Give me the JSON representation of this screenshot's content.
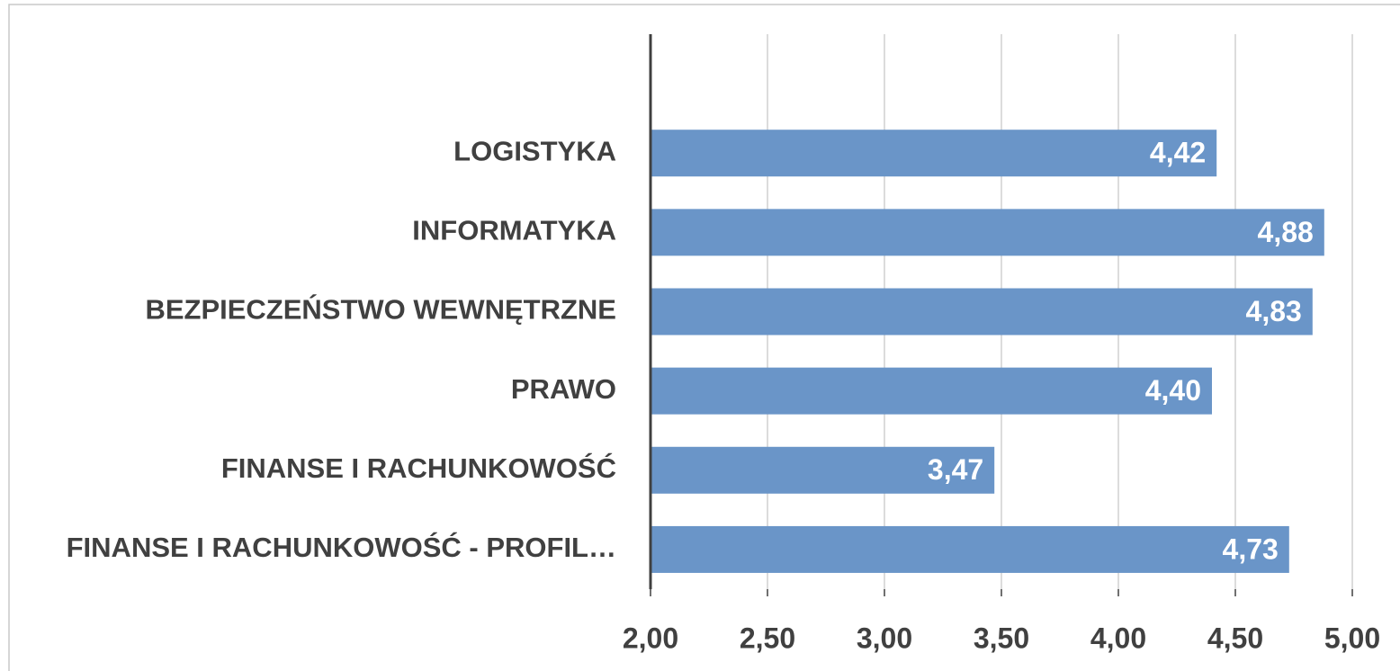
{
  "chart_data": {
    "type": "bar",
    "orientation": "horizontal",
    "categories": [
      "LOGISTYKA",
      "INFORMATYKA",
      "BEZPIECZEŃSTWO WEWNĘTRZNE",
      "PRAWO",
      "FINANSE I RACHUNKOWOŚĆ",
      "FINANSE I RACHUNKOWOŚĆ - PROFIL…"
    ],
    "values": [
      4.42,
      4.88,
      4.83,
      4.4,
      3.47,
      4.73
    ],
    "value_labels": [
      "4,42",
      "4,88",
      "4,83",
      "4,40",
      "3,47",
      "4,73"
    ],
    "color": "#6a95c8",
    "xlim": [
      2,
      5
    ],
    "xticks": [
      {
        "value": 2,
        "label": "2,00"
      },
      {
        "value": 2.5,
        "label": "2,50"
      },
      {
        "value": 3,
        "label": "3,00"
      },
      {
        "value": 3.5,
        "label": "3,50"
      },
      {
        "value": 4,
        "label": "4,00"
      },
      {
        "value": 4.5,
        "label": "4,50"
      },
      {
        "value": 5,
        "label": "5,00"
      }
    ],
    "grid": true
  }
}
